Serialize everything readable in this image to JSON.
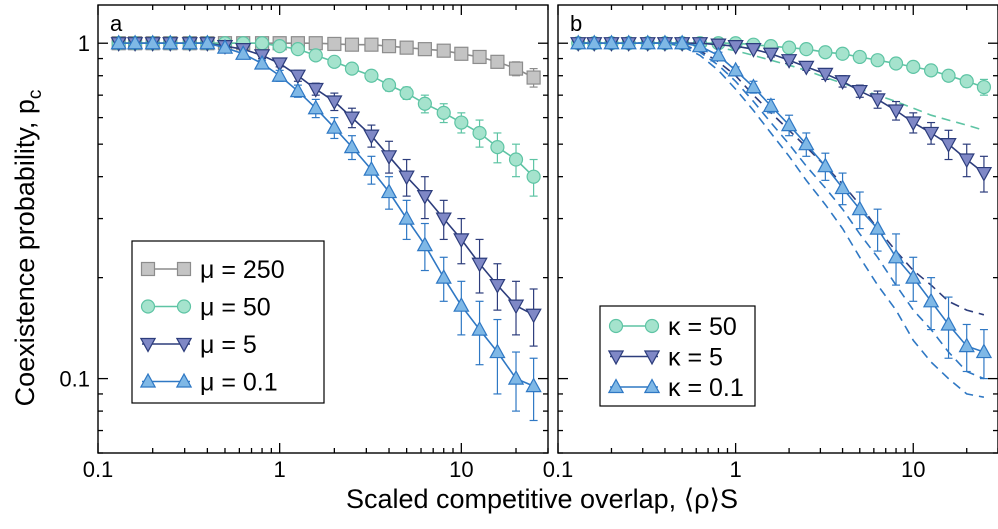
{
  "figure": {
    "xlabel": "Scaled competitive overlap, ⟨ρ⟩S",
    "ylabel": "Coexistence probability, p",
    "ylabel_sub": "c"
  },
  "chart_data": [
    {
      "panel": "a",
      "type": "line",
      "xscale": "log",
      "yscale": "log",
      "xlim": [
        0.1,
        30
      ],
      "ylim": [
        0.06,
        1.3
      ],
      "xticks": [
        0.1,
        1,
        10
      ],
      "xtick_labels": [
        "0.1",
        "1",
        "10"
      ],
      "yticks": [
        0.1,
        1
      ],
      "ytick_labels": [
        "0.1",
        "1"
      ],
      "legend_position": "bottom-left",
      "series": [
        {
          "name": "μ = 250",
          "marker": "square",
          "color": "#8c8c8c",
          "fill": "#c4c4c4",
          "x": [
            0.13,
            0.16,
            0.2,
            0.25,
            0.32,
            0.4,
            0.5,
            0.63,
            0.8,
            1.0,
            1.26,
            1.58,
            2.0,
            2.5,
            3.2,
            4.0,
            5.0,
            6.3,
            8.0,
            10,
            12.6,
            15.8,
            20,
            25
          ],
          "y": [
            1.0,
            1.0,
            1.0,
            1.0,
            1.0,
            1.0,
            1.0,
            1.0,
            1.0,
            1.0,
            1.0,
            1.0,
            0.995,
            0.99,
            0.99,
            0.98,
            0.97,
            0.96,
            0.95,
            0.93,
            0.91,
            0.88,
            0.84,
            0.79
          ],
          "err": [
            0,
            0,
            0,
            0,
            0,
            0,
            0,
            0,
            0,
            0,
            0,
            0,
            0,
            0,
            0,
            0,
            0,
            0,
            0.01,
            0.01,
            0.02,
            0.02,
            0.04,
            0.05
          ]
        },
        {
          "name": "μ = 50",
          "marker": "circle",
          "color": "#5ec4a4",
          "fill": "#a5e3cd",
          "x": [
            0.13,
            0.16,
            0.2,
            0.25,
            0.32,
            0.4,
            0.5,
            0.63,
            0.8,
            1.0,
            1.26,
            1.58,
            2.0,
            2.5,
            3.2,
            4.0,
            5.0,
            6.3,
            8.0,
            10,
            12.6,
            15.8,
            20,
            25
          ],
          "y": [
            1.0,
            1.0,
            1.0,
            1.0,
            1.0,
            1.0,
            1.0,
            1.0,
            1.0,
            0.98,
            0.96,
            0.92,
            0.88,
            0.84,
            0.8,
            0.75,
            0.71,
            0.66,
            0.62,
            0.58,
            0.54,
            0.49,
            0.45,
            0.4
          ],
          "err": [
            0,
            0,
            0,
            0,
            0,
            0,
            0,
            0,
            0,
            0.01,
            0.01,
            0.02,
            0.02,
            0.02,
            0.03,
            0.03,
            0.03,
            0.04,
            0.04,
            0.04,
            0.05,
            0.05,
            0.05,
            0.05
          ]
        },
        {
          "name": "μ = 5",
          "marker": "triangle-down",
          "color": "#2d3d7c",
          "fill": "#7f88c6",
          "x": [
            0.13,
            0.16,
            0.2,
            0.25,
            0.32,
            0.4,
            0.5,
            0.63,
            0.8,
            1.0,
            1.26,
            1.58,
            2.0,
            2.5,
            3.2,
            4.0,
            5.0,
            6.3,
            8.0,
            10,
            12.6,
            15.8,
            20,
            25
          ],
          "y": [
            1.0,
            1.0,
            1.0,
            1.0,
            1.0,
            1.0,
            0.98,
            0.96,
            0.92,
            0.87,
            0.8,
            0.73,
            0.67,
            0.6,
            0.53,
            0.46,
            0.4,
            0.35,
            0.3,
            0.26,
            0.22,
            0.19,
            0.165,
            0.155
          ],
          "err": [
            0,
            0,
            0,
            0,
            0,
            0,
            0.01,
            0.01,
            0.02,
            0.02,
            0.03,
            0.03,
            0.04,
            0.04,
            0.04,
            0.05,
            0.05,
            0.05,
            0.04,
            0.04,
            0.04,
            0.03,
            0.03,
            0.03
          ]
        },
        {
          "name": "μ = 0.1",
          "marker": "triangle-up",
          "color": "#2f78c4",
          "fill": "#7fb8e6",
          "x": [
            0.13,
            0.16,
            0.2,
            0.25,
            0.32,
            0.4,
            0.5,
            0.63,
            0.8,
            1.0,
            1.26,
            1.58,
            2.0,
            2.5,
            3.2,
            4.0,
            5.0,
            6.3,
            8.0,
            10,
            12.6,
            15.8,
            20,
            25
          ],
          "y": [
            1.0,
            1.0,
            1.0,
            1.0,
            1.0,
            1.0,
            0.97,
            0.93,
            0.87,
            0.8,
            0.72,
            0.64,
            0.56,
            0.49,
            0.42,
            0.36,
            0.3,
            0.25,
            0.2,
            0.165,
            0.14,
            0.12,
            0.1,
            0.095
          ],
          "err": [
            0,
            0,
            0,
            0,
            0,
            0,
            0.01,
            0.02,
            0.02,
            0.03,
            0.03,
            0.04,
            0.04,
            0.04,
            0.04,
            0.04,
            0.04,
            0.04,
            0.03,
            0.03,
            0.03,
            0.03,
            0.02,
            0.02
          ]
        }
      ]
    },
    {
      "panel": "b",
      "type": "line",
      "xscale": "log",
      "yscale": "log",
      "xlim": [
        0.1,
        30
      ],
      "ylim": [
        0.06,
        1.3
      ],
      "xticks": [
        0.1,
        1,
        10
      ],
      "xtick_labels": [
        "0.1",
        "1",
        "10"
      ],
      "yticks": [
        0.1,
        1
      ],
      "legend_position": "bottom-left",
      "series": [
        {
          "name": "κ = 50",
          "marker": "circle",
          "color": "#5ec4a4",
          "fill": "#a5e3cd",
          "x": [
            0.13,
            0.16,
            0.2,
            0.25,
            0.32,
            0.4,
            0.5,
            0.63,
            0.8,
            1.0,
            1.26,
            1.58,
            2.0,
            2.5,
            3.2,
            4.0,
            5.0,
            6.3,
            8.0,
            10,
            12.6,
            15.8,
            20,
            25
          ],
          "y": [
            1.0,
            1.0,
            1.0,
            1.0,
            1.0,
            1.0,
            1.0,
            1.0,
            1.0,
            1.0,
            0.99,
            0.98,
            0.97,
            0.96,
            0.94,
            0.93,
            0.91,
            0.89,
            0.87,
            0.85,
            0.83,
            0.8,
            0.77,
            0.74
          ],
          "err": [
            0,
            0,
            0,
            0,
            0,
            0,
            0,
            0,
            0,
            0,
            0.01,
            0.01,
            0.01,
            0.01,
            0.01,
            0.01,
            0.02,
            0.02,
            0.02,
            0.02,
            0.03,
            0.03,
            0.03,
            0.04
          ],
          "theory_y": [
            1.0,
            1.0,
            1.0,
            1.0,
            1.0,
            1.0,
            1.0,
            0.99,
            0.97,
            0.95,
            0.92,
            0.89,
            0.86,
            0.83,
            0.79,
            0.76,
            0.73,
            0.7,
            0.67,
            0.64,
            0.61,
            0.59,
            0.57,
            0.55
          ]
        },
        {
          "name": "κ = 5",
          "marker": "triangle-down",
          "color": "#2d3d7c",
          "fill": "#7f88c6",
          "x": [
            0.13,
            0.16,
            0.2,
            0.25,
            0.32,
            0.4,
            0.5,
            0.63,
            0.8,
            1.0,
            1.26,
            1.58,
            2.0,
            2.5,
            3.2,
            4.0,
            5.0,
            6.3,
            8.0,
            10,
            12.6,
            15.8,
            20,
            25
          ],
          "y": [
            1.0,
            1.0,
            1.0,
            1.0,
            1.0,
            1.0,
            1.0,
            1.0,
            0.99,
            0.98,
            0.96,
            0.93,
            0.89,
            0.85,
            0.81,
            0.77,
            0.72,
            0.68,
            0.63,
            0.58,
            0.54,
            0.5,
            0.45,
            0.41
          ],
          "err": [
            0,
            0,
            0,
            0,
            0,
            0,
            0,
            0,
            0.01,
            0.01,
            0.01,
            0.02,
            0.02,
            0.02,
            0.03,
            0.03,
            0.03,
            0.04,
            0.04,
            0.04,
            0.04,
            0.05,
            0.05,
            0.05
          ],
          "theory_y": [
            1.0,
            1.0,
            1.0,
            1.0,
            1.0,
            1.0,
            0.99,
            0.95,
            0.88,
            0.8,
            0.7,
            0.62,
            0.55,
            0.49,
            0.43,
            0.38,
            0.33,
            0.28,
            0.24,
            0.21,
            0.19,
            0.17,
            0.16,
            0.155
          ]
        },
        {
          "name": "κ = 0.1",
          "marker": "triangle-up",
          "color": "#2f78c4",
          "fill": "#7fb8e6",
          "x": [
            0.13,
            0.16,
            0.2,
            0.25,
            0.32,
            0.4,
            0.5,
            0.63,
            0.8,
            1.0,
            1.26,
            1.58,
            2.0,
            2.5,
            3.2,
            4.0,
            5.0,
            6.3,
            8.0,
            10,
            12.6,
            15.8,
            20,
            25
          ],
          "y": [
            1.0,
            1.0,
            1.0,
            1.0,
            1.0,
            1.0,
            1.0,
            0.98,
            0.92,
            0.83,
            0.74,
            0.65,
            0.57,
            0.5,
            0.43,
            0.37,
            0.32,
            0.28,
            0.23,
            0.2,
            0.17,
            0.145,
            0.125,
            0.12
          ],
          "err": [
            0,
            0,
            0,
            0,
            0,
            0,
            0,
            0.01,
            0.02,
            0.02,
            0.03,
            0.03,
            0.04,
            0.04,
            0.04,
            0.04,
            0.04,
            0.04,
            0.04,
            0.03,
            0.03,
            0.03,
            0.02,
            0.02
          ],
          "theory_upper": [
            1.0,
            1.0,
            1.0,
            1.0,
            1.0,
            1.0,
            0.99,
            0.94,
            0.86,
            0.77,
            0.67,
            0.58,
            0.5,
            0.43,
            0.37,
            0.32,
            0.27,
            0.23,
            0.19,
            0.16,
            0.14,
            0.12,
            0.105,
            0.1
          ],
          "theory_lower": [
            1.0,
            1.0,
            1.0,
            1.0,
            1.0,
            1.0,
            0.98,
            0.92,
            0.83,
            0.73,
            0.63,
            0.54,
            0.46,
            0.39,
            0.33,
            0.28,
            0.23,
            0.19,
            0.16,
            0.13,
            0.112,
            0.1,
            0.09,
            0.088
          ]
        }
      ]
    }
  ]
}
